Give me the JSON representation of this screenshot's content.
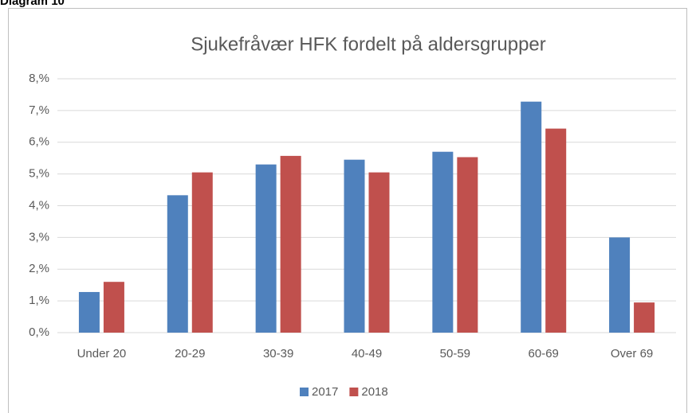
{
  "caption": "Diagram 10",
  "chart_data": {
    "type": "bar",
    "title": "Sjukefråvær HFK fordelt på aldersgrupper",
    "categories": [
      "Under 20",
      "20-29",
      "30-39",
      "40-49",
      "50-59",
      "60-69",
      "Over 69"
    ],
    "series": [
      {
        "name": "2017",
        "color": "#4f81bd",
        "values": [
          1.28,
          4.33,
          5.3,
          5.45,
          5.7,
          7.28,
          3.0
        ]
      },
      {
        "name": "2018",
        "color": "#c0504d",
        "values": [
          1.6,
          5.05,
          5.57,
          5.05,
          5.53,
          6.43,
          0.95
        ]
      }
    ],
    "ylim": [
      0,
      8
    ],
    "yticks": [
      {
        "value": 0,
        "label": "0,%"
      },
      {
        "value": 1,
        "label": "1,%"
      },
      {
        "value": 2,
        "label": "2,%"
      },
      {
        "value": 3,
        "label": "3,%"
      },
      {
        "value": 4,
        "label": "4,%"
      },
      {
        "value": 5,
        "label": "5,%"
      },
      {
        "value": 6,
        "label": "6,%"
      },
      {
        "value": 7,
        "label": "7,%"
      },
      {
        "value": 8,
        "label": "8,%"
      }
    ],
    "grid": true,
    "legend": "bottom"
  }
}
